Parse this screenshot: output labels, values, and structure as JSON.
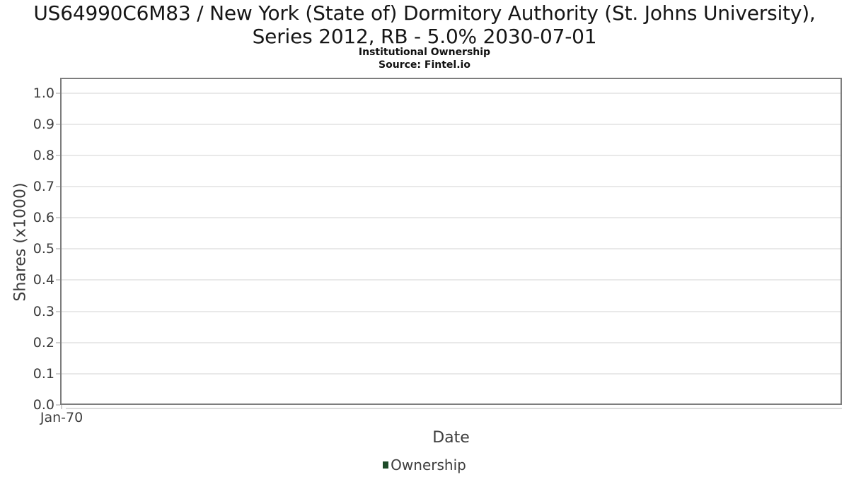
{
  "chart_data": {
    "type": "line",
    "title": "US64990C6M83 / New York (State of) Dormitory Authority (St. Johns University), Series 2012, RB - 5.0% 2030-07-01",
    "subtitle": "Institutional Ownership",
    "source": "Source: Fintel.io",
    "xlabel": "Date",
    "ylabel": "Shares (x1000)",
    "x_tick_labels": [
      "Jan-70"
    ],
    "y_tick_labels": [
      "0.0",
      "0.1",
      "0.2",
      "0.3",
      "0.4",
      "0.5",
      "0.6",
      "0.7",
      "0.8",
      "0.9",
      "1.0"
    ],
    "ylim": [
      0,
      1.05
    ],
    "grid": true,
    "legend": {
      "position": "bottom",
      "items": [
        {
          "label": "Ownership",
          "color": "#1d4b28"
        }
      ]
    },
    "series": [
      {
        "name": "Ownership",
        "x": [],
        "y": []
      }
    ]
  },
  "colors": {
    "axis_border": "#7d7d7d",
    "gridline": "#e9e9e9",
    "tick_mark": "#cfcfcf",
    "axis_text": "#3d3d3d",
    "title_text": "#161616",
    "legend_green": "#1d4b28"
  }
}
